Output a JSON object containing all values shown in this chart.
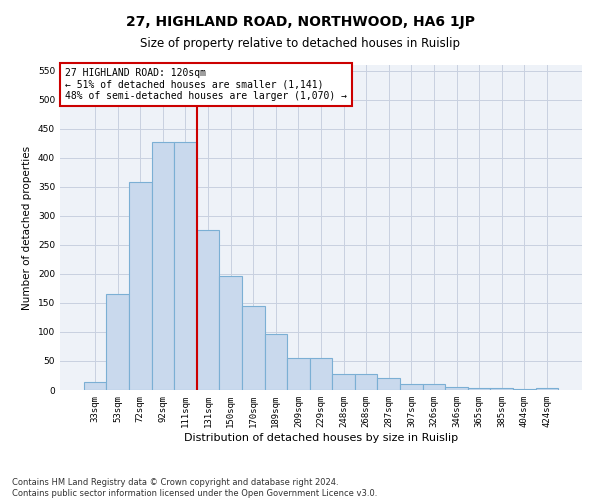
{
  "title": "27, HIGHLAND ROAD, NORTHWOOD, HA6 1JP",
  "subtitle": "Size of property relative to detached houses in Ruislip",
  "xlabel": "Distribution of detached houses by size in Ruislip",
  "ylabel": "Number of detached properties",
  "categories": [
    "33sqm",
    "53sqm",
    "72sqm",
    "92sqm",
    "111sqm",
    "131sqm",
    "150sqm",
    "170sqm",
    "189sqm",
    "209sqm",
    "229sqm",
    "248sqm",
    "268sqm",
    "287sqm",
    "307sqm",
    "326sqm",
    "346sqm",
    "365sqm",
    "385sqm",
    "404sqm",
    "424sqm"
  ],
  "values": [
    13,
    165,
    358,
    427,
    428,
    275,
    197,
    145,
    96,
    55,
    55,
    27,
    27,
    20,
    11,
    11,
    6,
    4,
    4,
    1,
    4
  ],
  "bar_color": "#c9d9ed",
  "bar_edge_color": "#7bafd4",
  "bar_edge_width": 0.8,
  "grid_color": "#c8d0e0",
  "background_color": "#eef2f8",
  "vline_x": 4.5,
  "vline_color": "#cc0000",
  "annotation_text": "27 HIGHLAND ROAD: 120sqm\n← 51% of detached houses are smaller (1,141)\n48% of semi-detached houses are larger (1,070) →",
  "annotation_box_color": "white",
  "annotation_box_edge": "#cc0000",
  "ylim": [
    0,
    560
  ],
  "yticks": [
    0,
    50,
    100,
    150,
    200,
    250,
    300,
    350,
    400,
    450,
    500,
    550
  ],
  "footer_line1": "Contains HM Land Registry data © Crown copyright and database right 2024.",
  "footer_line2": "Contains public sector information licensed under the Open Government Licence v3.0.",
  "title_fontsize": 10,
  "subtitle_fontsize": 8.5,
  "xlabel_fontsize": 8,
  "ylabel_fontsize": 7.5,
  "tick_fontsize": 6.5,
  "annotation_fontsize": 7,
  "footer_fontsize": 6
}
